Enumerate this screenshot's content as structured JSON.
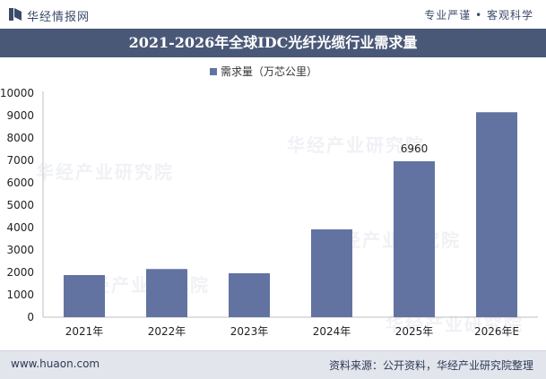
{
  "header": {
    "logo_text": "华经情报网",
    "slogan": "专业严谨 • 客观科学"
  },
  "chart_data": {
    "type": "bar",
    "title": "2021-2026年全球IDC光纤光缆行业需求量",
    "legend": {
      "label": "需求量（万芯公里）",
      "placement": "top"
    },
    "categories": [
      "2021年",
      "2022年",
      "2023年",
      "2024年",
      "2025年",
      "2026年E"
    ],
    "series": [
      {
        "name": "需求量（万芯公里）",
        "values": [
          1880,
          2150,
          1960,
          3920,
          6960,
          9150
        ]
      }
    ],
    "data_labels": {
      "4": "6960"
    },
    "ylim": [
      0,
      10000
    ],
    "yticks": [
      "0",
      "1000",
      "2000",
      "3000",
      "4000",
      "5000",
      "6000",
      "7000",
      "8000",
      "9000",
      "10000"
    ],
    "grid": false,
    "bar_color": "#6373a1"
  },
  "watermarks": [
    "华经产业研究院",
    "华经产业研究院",
    "华经产业研究院",
    "华经产业研究院",
    "华经产业研究院"
  ],
  "footer": {
    "site": "www.huaon.com",
    "source": "资料来源：公开资料，华经产业研究院整理"
  }
}
